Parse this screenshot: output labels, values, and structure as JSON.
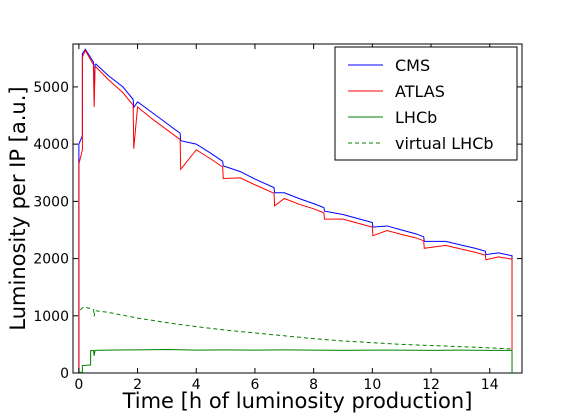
{
  "chart_data": {
    "type": "line",
    "title": "",
    "xlabel": "Time [h of luminosity production]",
    "ylabel": "Luminosity per IP [a.u.]",
    "xlim": [
      -0.2,
      15.1
    ],
    "ylim": [
      0,
      5750
    ],
    "xticks": [
      0,
      2,
      4,
      6,
      8,
      10,
      12,
      14
    ],
    "yticks": [
      0,
      1000,
      2000,
      3000,
      4000,
      5000
    ],
    "grid": false,
    "legend_position": "top-right",
    "series": [
      {
        "name": "CMS",
        "color": "#0000ff",
        "dash": "",
        "x": [
          0.0,
          0.0,
          0.12,
          0.12,
          0.22,
          0.5,
          0.52,
          0.55,
          0.58,
          1.0,
          1.5,
          1.85,
          1.87,
          2.0,
          2.5,
          3.0,
          3.45,
          3.47,
          4.0,
          4.5,
          4.9,
          4.92,
          5.5,
          6.0,
          6.65,
          6.67,
          7.0,
          7.5,
          8.0,
          8.35,
          8.37,
          9.0,
          9.5,
          10.0,
          10.02,
          10.5,
          11.0,
          11.5,
          11.75,
          11.77,
          12.5,
          13.0,
          13.5,
          13.85,
          13.87,
          14.3,
          14.75,
          14.76,
          14.76
        ],
        "y": [
          0,
          4000,
          4150,
          5580,
          5660,
          5430,
          4750,
          5390,
          5400,
          5200,
          5000,
          4780,
          4640,
          4740,
          4550,
          4360,
          4190,
          4060,
          4000,
          3840,
          3700,
          3620,
          3520,
          3390,
          3240,
          3150,
          3150,
          3050,
          2960,
          2890,
          2830,
          2770,
          2700,
          2630,
          2550,
          2570,
          2500,
          2430,
          2380,
          2300,
          2300,
          2240,
          2180,
          2130,
          2070,
          2100,
          2050,
          2050,
          900
        ]
      },
      {
        "name": "ATLAS",
        "color": "#ff0000",
        "dash": "",
        "x": [
          0.0,
          0.0,
          0.12,
          0.12,
          0.22,
          0.5,
          0.52,
          0.55,
          0.58,
          1.0,
          1.5,
          1.85,
          1.87,
          2.0,
          2.5,
          3.0,
          3.45,
          3.47,
          4.0,
          4.5,
          4.9,
          4.92,
          5.5,
          6.0,
          6.65,
          6.67,
          7.0,
          7.5,
          8.0,
          8.35,
          8.37,
          9.0,
          9.5,
          10.0,
          10.02,
          10.5,
          11.0,
          11.5,
          11.75,
          11.77,
          12.5,
          13.0,
          13.5,
          13.85,
          13.87,
          14.3,
          14.75,
          14.76,
          14.76
        ],
        "y": [
          0,
          3650,
          3900,
          5520,
          5640,
          5380,
          4650,
          5330,
          5350,
          5130,
          4900,
          4680,
          3920,
          4650,
          4440,
          4250,
          4080,
          3560,
          3900,
          3740,
          3600,
          3400,
          3410,
          3290,
          3140,
          2920,
          3050,
          2950,
          2870,
          2800,
          2690,
          2690,
          2620,
          2550,
          2400,
          2490,
          2420,
          2360,
          2310,
          2180,
          2230,
          2170,
          2110,
          2060,
          1980,
          2030,
          1990,
          1990,
          350
        ]
      },
      {
        "name": "LHCb",
        "color": "#008000",
        "dash": "",
        "x": [
          0.0,
          0.0,
          0.12,
          0.12,
          0.4,
          0.4,
          0.5,
          0.52,
          0.55,
          1.0,
          2.0,
          3.0,
          4.0,
          5.0,
          6.0,
          7.0,
          8.0,
          9.0,
          10.0,
          11.0,
          12.0,
          13.0,
          14.0,
          14.75,
          14.76,
          14.76
        ],
        "y": [
          0,
          10,
          10,
          130,
          140,
          390,
          395,
          300,
          395,
          400,
          405,
          410,
          400,
          405,
          400,
          405,
          400,
          395,
          400,
          400,
          395,
          400,
          395,
          395,
          395,
          0
        ]
      },
      {
        "name": "virtual LHCb",
        "color": "#008000",
        "dash": "4,3",
        "x": [
          0.05,
          0.12,
          0.22,
          0.5,
          0.52,
          0.55,
          1.0,
          2.0,
          3.0,
          4.0,
          5.0,
          6.0,
          7.0,
          8.0,
          9.0,
          10.0,
          11.0,
          12.0,
          13.0,
          14.0,
          14.75,
          14.76
        ],
        "y": [
          1100,
          1140,
          1150,
          1110,
          990,
          1090,
          1060,
          960,
          880,
          810,
          750,
          700,
          650,
          600,
          560,
          530,
          500,
          480,
          460,
          440,
          420,
          420
        ]
      }
    ]
  }
}
